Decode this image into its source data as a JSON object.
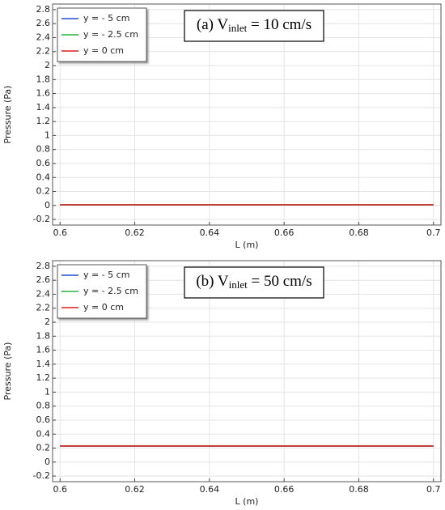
{
  "chart_data": [
    {
      "type": "line",
      "annotation": {
        "prefix": "(a) V",
        "sub": "inlet",
        "suffix": " = 10 cm/s"
      },
      "x_label": "L (m)",
      "y_label": "Pressure (Pa)",
      "x": [
        0.6,
        0.7
      ],
      "series": [
        {
          "name": "y = - 5 cm",
          "color": "#1f4fd6",
          "values": [
            0.01,
            0.01
          ]
        },
        {
          "name": "y = - 2.5 cm",
          "color": "#22b83a",
          "values": [
            0.01,
            0.01
          ]
        },
        {
          "name": "y = 0 cm",
          "color": "#e8191a",
          "values": [
            0.01,
            0.01
          ]
        }
      ],
      "xlim": [
        0.598,
        0.702
      ],
      "xticks": [
        0.6,
        0.62,
        0.64,
        0.66,
        0.68,
        0.7
      ],
      "ylim": [
        -0.28,
        2.88
      ],
      "yticks": [
        -0.2,
        0,
        0.2,
        0.4,
        0.6,
        0.8,
        1,
        1.2,
        1.4,
        1.6,
        1.8,
        2,
        2.2,
        2.4,
        2.6,
        2.8
      ],
      "grid": true,
      "legend": "upper-left"
    },
    {
      "type": "line",
      "annotation": {
        "prefix": "(b) V",
        "sub": "inlet",
        "suffix": " = 50 cm/s"
      },
      "x_label": "L (m)",
      "y_label": "Pressure (Pa)",
      "x": [
        0.6,
        0.7
      ],
      "series": [
        {
          "name": "y = - 5 cm",
          "color": "#1f4fd6",
          "values": [
            0.23,
            0.23
          ]
        },
        {
          "name": "y = - 2.5 cm",
          "color": "#22b83a",
          "values": [
            0.23,
            0.23
          ]
        },
        {
          "name": "y = 0 cm",
          "color": "#e8191a",
          "values": [
            0.23,
            0.23
          ]
        }
      ],
      "xlim": [
        0.598,
        0.702
      ],
      "xticks": [
        0.6,
        0.62,
        0.64,
        0.66,
        0.68,
        0.7
      ],
      "ylim": [
        -0.28,
        2.88
      ],
      "yticks": [
        -0.2,
        0,
        0.2,
        0.4,
        0.6,
        0.8,
        1,
        1.2,
        1.4,
        1.6,
        1.8,
        2,
        2.2,
        2.4,
        2.6,
        2.8
      ],
      "grid": true,
      "legend": "upper-left"
    }
  ]
}
